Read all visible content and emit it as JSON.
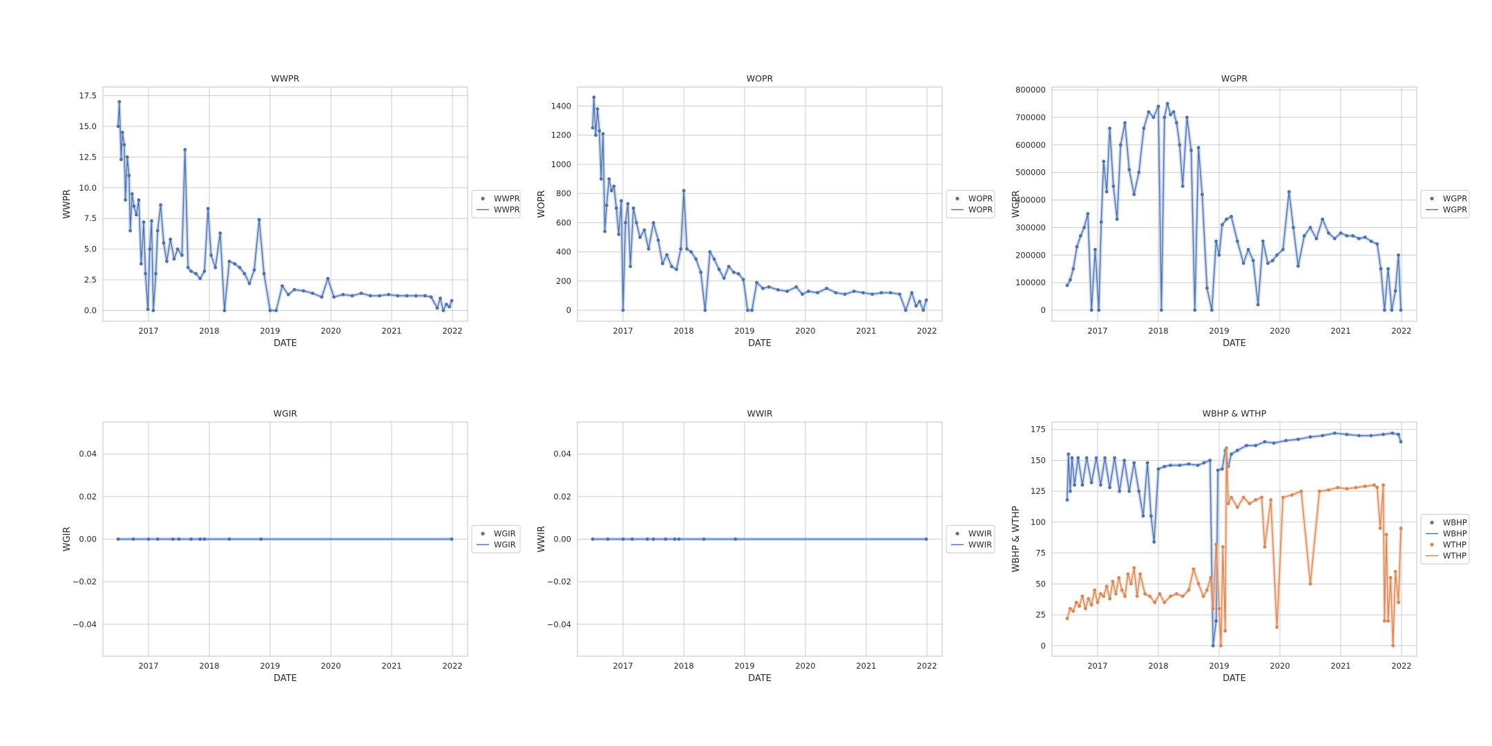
{
  "colors": {
    "blue": "#4c72b0",
    "orange": "#dd8452",
    "band_blue": "#a8bcdd",
    "band_orange": "#f0c2a2"
  },
  "chart_data": [
    {
      "type": "line",
      "title": "WWPR",
      "xlabel": "DATE",
      "ylabel": "WWPR",
      "xlim": [
        2016.25,
        2022.25
      ],
      "ylim": [
        -0.87,
        18.2
      ],
      "xticks": [
        2017,
        2018,
        2019,
        2020,
        2021,
        2022
      ],
      "yticks": [
        0.0,
        2.5,
        5.0,
        7.5,
        10.0,
        12.5,
        15.0,
        17.5
      ],
      "ytick_labels": [
        "0.0",
        "2.5",
        "5.0",
        "7.5",
        "10.0",
        "12.5",
        "15.0",
        "17.5"
      ],
      "legend": [
        "WWPR",
        "WWPR"
      ],
      "series": [
        {
          "name": "WWPR",
          "color": "blue",
          "x": [
            2016.5,
            2016.52,
            2016.55,
            2016.57,
            2016.6,
            2016.62,
            2016.65,
            2016.68,
            2016.7,
            2016.73,
            2016.76,
            2016.8,
            2016.84,
            2016.88,
            2016.92,
            2016.95,
            2016.99,
            2017.02,
            2017.05,
            2017.08,
            2017.12,
            2017.15,
            2017.2,
            2017.25,
            2017.3,
            2017.36,
            2017.42,
            2017.48,
            2017.55,
            2017.6,
            2017.65,
            2017.7,
            2017.78,
            2017.85,
            2017.92,
            2017.98,
            2018.03,
            2018.1,
            2018.18,
            2018.25,
            2018.33,
            2018.42,
            2018.5,
            2018.58,
            2018.66,
            2018.74,
            2018.82,
            2018.9,
            2019.0,
            2019.1,
            2019.2,
            2019.3,
            2019.4,
            2019.55,
            2019.7,
            2019.85,
            2019.95,
            2020.05,
            2020.2,
            2020.35,
            2020.5,
            2020.65,
            2020.8,
            2020.95,
            2021.1,
            2021.25,
            2021.4,
            2021.55,
            2021.65,
            2021.75,
            2021.8,
            2021.85,
            2021.9,
            2021.95,
            2021.99
          ],
          "y": [
            15.0,
            17.0,
            12.3,
            14.5,
            13.5,
            9.0,
            12.5,
            11.0,
            6.5,
            9.5,
            8.5,
            7.8,
            9.0,
            3.8,
            7.2,
            3.0,
            0.1,
            5.0,
            7.3,
            0.0,
            3.0,
            6.5,
            8.6,
            5.5,
            4.0,
            5.8,
            4.2,
            5.0,
            4.5,
            13.1,
            3.5,
            3.2,
            3.0,
            2.6,
            3.2,
            8.3,
            4.5,
            3.5,
            6.3,
            0.0,
            4.0,
            3.8,
            3.5,
            3.0,
            2.2,
            3.3,
            7.4,
            3.0,
            0.0,
            0.0,
            2.0,
            1.3,
            1.7,
            1.6,
            1.4,
            1.1,
            2.6,
            1.1,
            1.3,
            1.2,
            1.4,
            1.2,
            1.2,
            1.3,
            1.2,
            1.2,
            1.2,
            1.2,
            1.1,
            0.2,
            1.0,
            0.0,
            0.5,
            0.3,
            0.8
          ]
        }
      ]
    },
    {
      "type": "line",
      "title": "WOPR",
      "xlabel": "DATE",
      "ylabel": "WOPR",
      "xlim": [
        2016.25,
        2022.25
      ],
      "ylim": [
        -75,
        1530
      ],
      "xticks": [
        2017,
        2018,
        2019,
        2020,
        2021,
        2022
      ],
      "yticks": [
        0,
        200,
        400,
        600,
        800,
        1000,
        1200,
        1400
      ],
      "ytick_labels": [
        "0",
        "200",
        "400",
        "600",
        "800",
        "1000",
        "1200",
        "1400"
      ],
      "legend": [
        "WOPR",
        "WOPR"
      ],
      "series": [
        {
          "name": "WOPR",
          "color": "blue",
          "x": [
            2016.5,
            2016.52,
            2016.55,
            2016.58,
            2016.61,
            2016.64,
            2016.67,
            2016.7,
            2016.73,
            2016.77,
            2016.81,
            2016.85,
            2016.89,
            2016.93,
            2016.97,
            2017.0,
            2017.04,
            2017.08,
            2017.12,
            2017.17,
            2017.22,
            2017.28,
            2017.35,
            2017.42,
            2017.5,
            2017.58,
            2017.65,
            2017.72,
            2017.8,
            2017.88,
            2017.95,
            2018.0,
            2018.05,
            2018.12,
            2018.2,
            2018.28,
            2018.35,
            2018.43,
            2018.5,
            2018.58,
            2018.66,
            2018.74,
            2018.82,
            2018.9,
            2018.98,
            2019.05,
            2019.12,
            2019.2,
            2019.3,
            2019.4,
            2019.55,
            2019.7,
            2019.85,
            2019.95,
            2020.05,
            2020.2,
            2020.35,
            2020.5,
            2020.65,
            2020.8,
            2020.95,
            2021.1,
            2021.25,
            2021.4,
            2021.55,
            2021.65,
            2021.75,
            2021.82,
            2021.88,
            2021.94,
            2021.99
          ],
          "y": [
            1250,
            1460,
            1200,
            1380,
            1230,
            900,
            1210,
            540,
            720,
            900,
            820,
            850,
            700,
            520,
            750,
            0,
            600,
            730,
            300,
            700,
            600,
            500,
            550,
            420,
            600,
            480,
            320,
            380,
            300,
            280,
            420,
            820,
            420,
            400,
            350,
            260,
            0,
            400,
            350,
            280,
            220,
            300,
            260,
            250,
            210,
            0,
            0,
            190,
            150,
            160,
            140,
            130,
            160,
            110,
            130,
            120,
            150,
            120,
            110,
            130,
            120,
            110,
            120,
            120,
            110,
            0,
            120,
            30,
            60,
            0,
            70
          ]
        }
      ]
    },
    {
      "type": "line",
      "title": "WGPR",
      "xlabel": "DATE",
      "ylabel": "WGPR",
      "xlim": [
        2016.25,
        2022.25
      ],
      "ylim": [
        -40000,
        810000
      ],
      "xticks": [
        2017,
        2018,
        2019,
        2020,
        2021,
        2022
      ],
      "yticks": [
        0,
        100000,
        200000,
        300000,
        400000,
        500000,
        600000,
        700000,
        800000
      ],
      "ytick_labels": [
        "0",
        "100000",
        "200000",
        "300000",
        "400000",
        "500000",
        "600000",
        "700000",
        "800000"
      ],
      "legend": [
        "WGPR",
        "WGPR"
      ],
      "series": [
        {
          "name": "WGPR",
          "color": "blue",
          "x": [
            2016.5,
            2016.55,
            2016.6,
            2016.66,
            2016.72,
            2016.78,
            2016.84,
            2016.9,
            2016.96,
            2017.02,
            2017.06,
            2017.1,
            2017.15,
            2017.2,
            2017.26,
            2017.32,
            2017.38,
            2017.45,
            2017.52,
            2017.6,
            2017.68,
            2017.76,
            2017.84,
            2017.92,
            2018.0,
            2018.05,
            2018.1,
            2018.15,
            2018.2,
            2018.25,
            2018.3,
            2018.35,
            2018.4,
            2018.47,
            2018.54,
            2018.6,
            2018.66,
            2018.72,
            2018.8,
            2018.88,
            2018.95,
            2019.0,
            2019.05,
            2019.12,
            2019.2,
            2019.3,
            2019.4,
            2019.48,
            2019.56,
            2019.64,
            2019.72,
            2019.8,
            2019.88,
            2019.95,
            2020.05,
            2020.15,
            2020.22,
            2020.3,
            2020.4,
            2020.5,
            2020.6,
            2020.7,
            2020.8,
            2020.9,
            2021.0,
            2021.1,
            2021.2,
            2021.3,
            2021.4,
            2021.5,
            2021.6,
            2021.66,
            2021.72,
            2021.78,
            2021.84,
            2021.9,
            2021.95,
            2021.99
          ],
          "y": [
            90000,
            110000,
            150000,
            230000,
            270000,
            300000,
            350000,
            0,
            220000,
            0,
            320000,
            540000,
            430000,
            660000,
            450000,
            330000,
            600000,
            680000,
            510000,
            420000,
            500000,
            660000,
            720000,
            700000,
            740000,
            0,
            700000,
            750000,
            710000,
            720000,
            680000,
            600000,
            450000,
            700000,
            580000,
            0,
            590000,
            420000,
            80000,
            0,
            250000,
            200000,
            310000,
            330000,
            340000,
            250000,
            170000,
            220000,
            180000,
            20000,
            250000,
            170000,
            180000,
            200000,
            220000,
            430000,
            300000,
            160000,
            270000,
            300000,
            260000,
            330000,
            280000,
            260000,
            280000,
            270000,
            270000,
            260000,
            265000,
            250000,
            240000,
            150000,
            0,
            150000,
            0,
            70000,
            200000,
            0
          ]
        }
      ]
    },
    {
      "type": "line",
      "title": "WGIR",
      "xlabel": "DATE",
      "ylabel": "WGIR",
      "xlim": [
        2016.25,
        2022.25
      ],
      "ylim": [
        -0.055,
        0.055
      ],
      "xticks": [
        2017,
        2018,
        2019,
        2020,
        2021,
        2022
      ],
      "yticks": [
        -0.04,
        -0.02,
        0.0,
        0.02,
        0.04
      ],
      "ytick_labels": [
        "−0.04",
        "−0.02",
        "0.00",
        "0.02",
        "0.04"
      ],
      "legend": [
        "WGIR",
        "WGIR"
      ],
      "series": [
        {
          "name": "WGIR",
          "color": "blue",
          "x": [
            2016.5,
            2016.75,
            2017.0,
            2017.15,
            2017.4,
            2017.5,
            2017.7,
            2017.85,
            2017.92,
            2018.33,
            2018.85,
            2021.99
          ],
          "y": [
            0,
            0,
            0,
            0,
            0,
            0,
            0,
            0,
            0,
            0,
            0,
            0
          ]
        }
      ]
    },
    {
      "type": "line",
      "title": "WWIR",
      "xlabel": "DATE",
      "ylabel": "WWIR",
      "xlim": [
        2016.25,
        2022.25
      ],
      "ylim": [
        -0.055,
        0.055
      ],
      "xticks": [
        2017,
        2018,
        2019,
        2020,
        2021,
        2022
      ],
      "yticks": [
        -0.04,
        -0.02,
        0.0,
        0.02,
        0.04
      ],
      "ytick_labels": [
        "−0.04",
        "−0.02",
        "0.00",
        "0.02",
        "0.04"
      ],
      "legend": [
        "WWIR",
        "WWIR"
      ],
      "series": [
        {
          "name": "WWIR",
          "color": "blue",
          "x": [
            2016.5,
            2016.75,
            2017.0,
            2017.15,
            2017.4,
            2017.5,
            2017.7,
            2017.85,
            2017.92,
            2018.33,
            2018.85,
            2021.99
          ],
          "y": [
            0,
            0,
            0,
            0,
            0,
            0,
            0,
            0,
            0,
            0,
            0,
            0
          ]
        }
      ]
    },
    {
      "type": "line",
      "title": "WBHP & WTHP",
      "xlabel": "DATE",
      "ylabel": "WBHP & WTHP",
      "xlim": [
        2016.25,
        2022.25
      ],
      "ylim": [
        -8.5,
        181
      ],
      "xticks": [
        2017,
        2018,
        2019,
        2020,
        2021,
        2022
      ],
      "yticks": [
        0,
        25,
        50,
        75,
        100,
        125,
        150,
        175
      ],
      "ytick_labels": [
        "0",
        "25",
        "50",
        "75",
        "100",
        "125",
        "150",
        "175"
      ],
      "legend": [
        "WBHP",
        "WBHP",
        "WTHP",
        "WTHP"
      ],
      "series": [
        {
          "name": "WBHP",
          "color": "blue",
          "x": [
            2016.5,
            2016.52,
            2016.55,
            2016.58,
            2016.62,
            2016.68,
            2016.75,
            2016.82,
            2016.9,
            2016.98,
            2017.05,
            2017.12,
            2017.2,
            2017.28,
            2017.36,
            2017.44,
            2017.52,
            2017.6,
            2017.68,
            2017.75,
            2017.82,
            2017.88,
            2017.93,
            2018.0,
            2018.1,
            2018.2,
            2018.35,
            2018.5,
            2018.65,
            2018.75,
            2018.85,
            2018.9,
            2018.95,
            2018.98,
            2019.05,
            2019.1,
            2019.15,
            2019.2,
            2019.3,
            2019.45,
            2019.6,
            2019.75,
            2019.9,
            2020.1,
            2020.3,
            2020.5,
            2020.7,
            2020.9,
            2021.1,
            2021.3,
            2021.5,
            2021.7,
            2021.85,
            2021.95,
            2021.99
          ],
          "y": [
            118,
            155,
            125,
            152,
            130,
            152,
            130,
            152,
            132,
            152,
            130,
            152,
            128,
            152,
            125,
            150,
            125,
            148,
            125,
            105,
            148,
            105,
            84,
            143,
            145,
            146,
            146,
            147,
            146,
            148,
            150,
            0,
            20,
            142,
            143,
            158,
            145,
            155,
            158,
            162,
            162,
            165,
            164,
            166,
            167,
            169,
            170,
            172,
            171,
            170,
            170,
            171,
            172,
            171,
            165
          ]
        },
        {
          "name": "WTHP",
          "color": "orange",
          "x": [
            2016.5,
            2016.55,
            2016.6,
            2016.65,
            2016.7,
            2016.75,
            2016.8,
            2016.85,
            2016.9,
            2016.95,
            2017.0,
            2017.05,
            2017.1,
            2017.15,
            2017.2,
            2017.25,
            2017.3,
            2017.35,
            2017.4,
            2017.45,
            2017.5,
            2017.55,
            2017.6,
            2017.65,
            2017.7,
            2017.78,
            2017.86,
            2017.94,
            2018.02,
            2018.1,
            2018.2,
            2018.3,
            2018.4,
            2018.5,
            2018.58,
            2018.66,
            2018.74,
            2018.8,
            2018.86,
            2018.9,
            2018.95,
            2019.0,
            2019.03,
            2019.06,
            2019.1,
            2019.12,
            2019.15,
            2019.2,
            2019.3,
            2019.4,
            2019.5,
            2019.6,
            2019.7,
            2019.75,
            2019.85,
            2019.95,
            2020.05,
            2020.2,
            2020.35,
            2020.5,
            2020.65,
            2020.8,
            2020.95,
            2021.1,
            2021.25,
            2021.4,
            2021.55,
            2021.6,
            2021.65,
            2021.7,
            2021.72,
            2021.75,
            2021.78,
            2021.82,
            2021.86,
            2021.9,
            2021.95,
            2021.99
          ],
          "y": [
            22,
            30,
            28,
            35,
            32,
            40,
            30,
            38,
            33,
            45,
            35,
            42,
            40,
            48,
            38,
            52,
            42,
            55,
            45,
            40,
            58,
            50,
            63,
            40,
            58,
            42,
            40,
            35,
            42,
            35,
            40,
            42,
            40,
            45,
            62,
            50,
            40,
            45,
            55,
            30,
            82,
            30,
            0,
            80,
            12,
            160,
            115,
            120,
            112,
            120,
            115,
            118,
            120,
            80,
            118,
            15,
            120,
            122,
            125,
            50,
            125,
            126,
            128,
            127,
            128,
            129,
            130,
            128,
            95,
            130,
            20,
            90,
            20,
            55,
            0,
            60,
            35,
            95
          ]
        }
      ]
    }
  ]
}
